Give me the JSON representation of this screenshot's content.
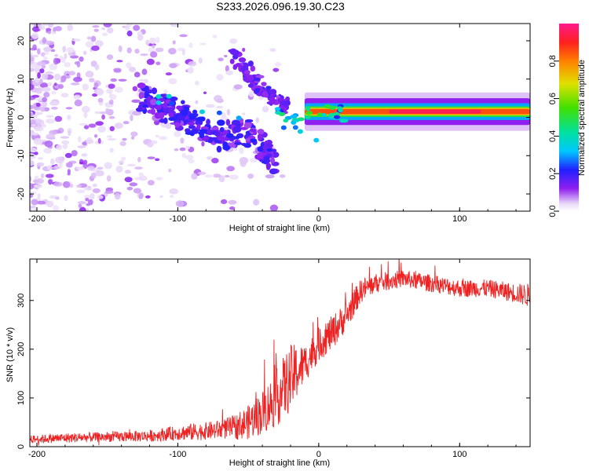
{
  "title": "S233.2026.096.19.30.C23",
  "chart_data": [
    {
      "type": "heatmap",
      "title": "S233.2026.096.19.30.C23",
      "xlabel": "Height of straight line (km)",
      "ylabel": "Frequency (Hz)",
      "xlim": [
        -205,
        150
      ],
      "ylim": [
        -24.5,
        24.5
      ],
      "xticks": [
        -200,
        -100,
        0,
        100
      ],
      "yticks": [
        -20,
        -10,
        0,
        10,
        20
      ],
      "colorbar": {
        "label": "Normalized spectral amplitude",
        "range": [
          0,
          1
        ],
        "ticks": [
          "0.0",
          "0.2",
          "0.4",
          "0.6",
          "0.8"
        ]
      },
      "features": [
        {
          "description": "dominant narrow band",
          "x_range": [
            0,
            150
          ],
          "frequency": 1.5,
          "peak_amplitude": 0.95,
          "peak_x_range": [
            50,
            115
          ]
        },
        {
          "description": "dispersive arc",
          "points": [
            [
              -125,
              5
            ],
            [
              -100,
              1
            ],
            [
              -75,
              -5
            ],
            [
              -50,
              -4
            ],
            [
              -30,
              -12
            ]
          ]
        },
        {
          "description": "upper arc",
          "points": [
            [
              -60,
              16
            ],
            [
              -40,
              8
            ],
            [
              -20,
              2
            ]
          ]
        }
      ]
    },
    {
      "type": "line",
      "xlabel": "Height of straight line (km)",
      "ylabel": "SNR (10 * v/v)",
      "xlim": [
        -205,
        150
      ],
      "ylim": [
        0,
        385
      ],
      "xticks": [
        -200,
        -100,
        0,
        100
      ],
      "yticks": [
        0,
        100,
        200,
        300
      ],
      "series": [
        {
          "name": "SNR",
          "color": "#ee2222",
          "x": [
            -205,
            -180,
            -150,
            -120,
            -100,
            -90,
            -80,
            -70,
            -60,
            -50,
            -40,
            -30,
            -20,
            -10,
            0,
            10,
            20,
            30,
            40,
            60,
            80,
            100,
            120,
            140,
            150
          ],
          "mean": [
            15,
            18,
            20,
            22,
            28,
            30,
            32,
            35,
            40,
            50,
            70,
            100,
            140,
            170,
            210,
            235,
            270,
            320,
            335,
            345,
            335,
            325,
            325,
            315,
            310
          ],
          "noise": [
            8,
            10,
            10,
            12,
            15,
            18,
            18,
            20,
            25,
            35,
            45,
            60,
            70,
            40,
            35,
            35,
            30,
            25,
            20,
            18,
            18,
            18,
            18,
            20,
            25
          ]
        }
      ]
    }
  ]
}
